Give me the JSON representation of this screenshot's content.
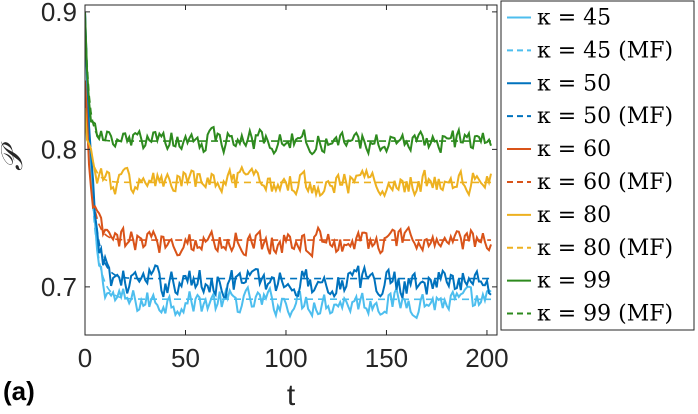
{
  "panel_label": "(a)",
  "chart_data": {
    "type": "line",
    "xlabel": "t",
    "ylabel": "𝒫",
    "xlim": [
      0,
      205
    ],
    "ylim": [
      0.665,
      0.905
    ],
    "xticks": [
      0,
      50,
      100,
      150,
      200
    ],
    "xtick_labels": [
      "0",
      "50",
      "100",
      "150",
      "200"
    ],
    "yticks": [
      0.7,
      0.8,
      0.9
    ],
    "ytick_labels": [
      "0.7",
      "0.8",
      "0.9"
    ],
    "grid": false,
    "legend_position": "outside-right",
    "series": [
      {
        "name": "κ = 45",
        "style": "solid",
        "color": "#4DBEEE",
        "start": 0.9,
        "plateau": 0.689,
        "tau": 3.5,
        "noise": 0.008
      },
      {
        "name": "κ = 45 (MF)",
        "style": "dashed",
        "color": "#4DBEEE",
        "start": 0.9,
        "plateau": 0.691,
        "tau": 3.5,
        "noise": 0
      },
      {
        "name": "κ = 50",
        "style": "solid",
        "color": "#0072BD",
        "start": 0.9,
        "plateau": 0.704,
        "tau": 3.5,
        "noise": 0.009
      },
      {
        "name": "κ = 50 (MF)",
        "style": "dashed",
        "color": "#0072BD",
        "start": 0.9,
        "plateau": 0.706,
        "tau": 3.5,
        "noise": 0
      },
      {
        "name": "κ = 60",
        "style": "solid",
        "color": "#D95319",
        "start": 0.85,
        "plateau": 0.733,
        "tau": 3,
        "noise": 0.008
      },
      {
        "name": "κ = 60 (MF)",
        "style": "dashed",
        "color": "#D95319",
        "start": 0.85,
        "plateau": 0.734,
        "tau": 3,
        "noise": 0
      },
      {
        "name": "κ = 80",
        "style": "solid",
        "color": "#EDB120",
        "start": 0.83,
        "plateau": 0.776,
        "tau": 3,
        "noise": 0.008
      },
      {
        "name": "κ = 80 (MF)",
        "style": "dashed",
        "color": "#EDB120",
        "start": 0.83,
        "plateau": 0.776,
        "tau": 3,
        "noise": 0
      },
      {
        "name": "κ = 99",
        "style": "solid",
        "color": "#2D8A1E",
        "start": 0.9,
        "plateau": 0.806,
        "tau": 2,
        "noise": 0.007
      },
      {
        "name": "κ = 99 (MF)",
        "style": "dashed",
        "color": "#2D8A1E",
        "start": 0.9,
        "plateau": 0.806,
        "tau": 2,
        "noise": 0
      }
    ],
    "t_step": 1,
    "t_max": 202
  }
}
